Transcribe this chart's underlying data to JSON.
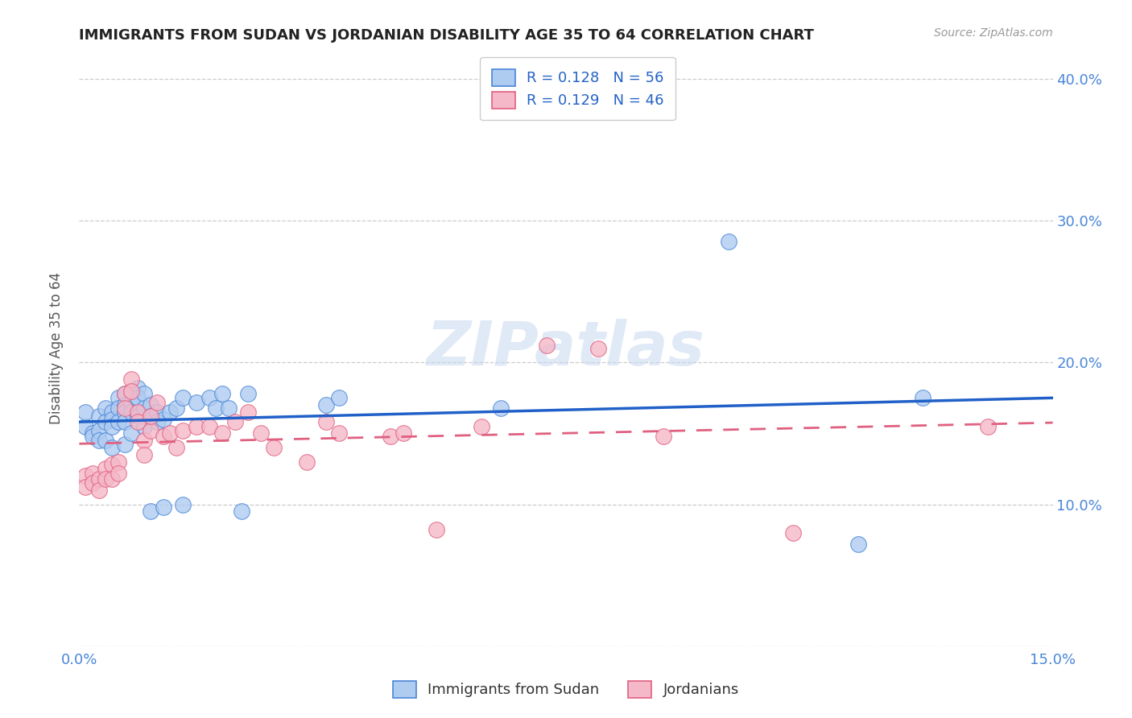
{
  "title": "IMMIGRANTS FROM SUDAN VS JORDANIAN DISABILITY AGE 35 TO 64 CORRELATION CHART",
  "source": "Source: ZipAtlas.com",
  "ylabel": "Disability Age 35 to 64",
  "xlim": [
    0.0,
    0.15
  ],
  "ylim": [
    0.0,
    0.42
  ],
  "series1_label": "Immigrants from Sudan",
  "series1_R": "0.128",
  "series1_N": "56",
  "series1_color": "#aecbf0",
  "series1_edge_color": "#4a86d8",
  "series1_line_color": "#2060c8",
  "series2_label": "Jordanians",
  "series2_R": "0.129",
  "series2_N": "46",
  "series2_color": "#f5b8c8",
  "series2_edge_color": "#e06080",
  "series2_line_color": "#e06080",
  "legend_color": "#2563c7",
  "watermark": "ZIPatlas",
  "background_color": "#ffffff",
  "tick_color": "#4a86d8",
  "sudan_x": [
    0.001,
    0.001,
    0.002,
    0.002,
    0.003,
    0.003,
    0.003,
    0.004,
    0.004,
    0.004,
    0.005,
    0.005,
    0.005,
    0.005,
    0.006,
    0.006,
    0.006,
    0.007,
    0.007,
    0.007,
    0.007,
    0.007,
    0.008,
    0.008,
    0.008,
    0.008,
    0.009,
    0.009,
    0.009,
    0.01,
    0.01,
    0.01,
    0.011,
    0.011,
    0.011,
    0.012,
    0.012,
    0.013,
    0.013,
    0.014,
    0.015,
    0.016,
    0.016,
    0.018,
    0.02,
    0.021,
    0.022,
    0.023,
    0.025,
    0.026,
    0.038,
    0.04,
    0.065,
    0.1,
    0.12,
    0.13
  ],
  "sudan_y": [
    0.155,
    0.165,
    0.15,
    0.148,
    0.162,
    0.152,
    0.145,
    0.168,
    0.158,
    0.145,
    0.165,
    0.16,
    0.155,
    0.14,
    0.175,
    0.168,
    0.158,
    0.178,
    0.17,
    0.165,
    0.158,
    0.142,
    0.18,
    0.172,
    0.165,
    0.15,
    0.182,
    0.175,
    0.162,
    0.178,
    0.168,
    0.155,
    0.17,
    0.162,
    0.095,
    0.165,
    0.158,
    0.16,
    0.098,
    0.165,
    0.168,
    0.175,
    0.1,
    0.172,
    0.175,
    0.168,
    0.178,
    0.168,
    0.095,
    0.178,
    0.17,
    0.175,
    0.168,
    0.285,
    0.072,
    0.175
  ],
  "jordan_x": [
    0.001,
    0.001,
    0.002,
    0.002,
    0.003,
    0.003,
    0.004,
    0.004,
    0.005,
    0.005,
    0.006,
    0.006,
    0.007,
    0.007,
    0.008,
    0.008,
    0.009,
    0.009,
    0.01,
    0.01,
    0.011,
    0.011,
    0.012,
    0.013,
    0.014,
    0.015,
    0.016,
    0.018,
    0.02,
    0.022,
    0.024,
    0.026,
    0.028,
    0.03,
    0.035,
    0.038,
    0.04,
    0.048,
    0.05,
    0.055,
    0.062,
    0.072,
    0.08,
    0.09,
    0.11,
    0.14
  ],
  "jordan_y": [
    0.12,
    0.112,
    0.122,
    0.115,
    0.118,
    0.11,
    0.125,
    0.118,
    0.128,
    0.118,
    0.13,
    0.122,
    0.178,
    0.168,
    0.188,
    0.18,
    0.165,
    0.158,
    0.145,
    0.135,
    0.152,
    0.162,
    0.172,
    0.148,
    0.15,
    0.14,
    0.152,
    0.155,
    0.155,
    0.15,
    0.158,
    0.165,
    0.15,
    0.14,
    0.13,
    0.158,
    0.15,
    0.148,
    0.15,
    0.082,
    0.155,
    0.212,
    0.21,
    0.148,
    0.08,
    0.155
  ]
}
